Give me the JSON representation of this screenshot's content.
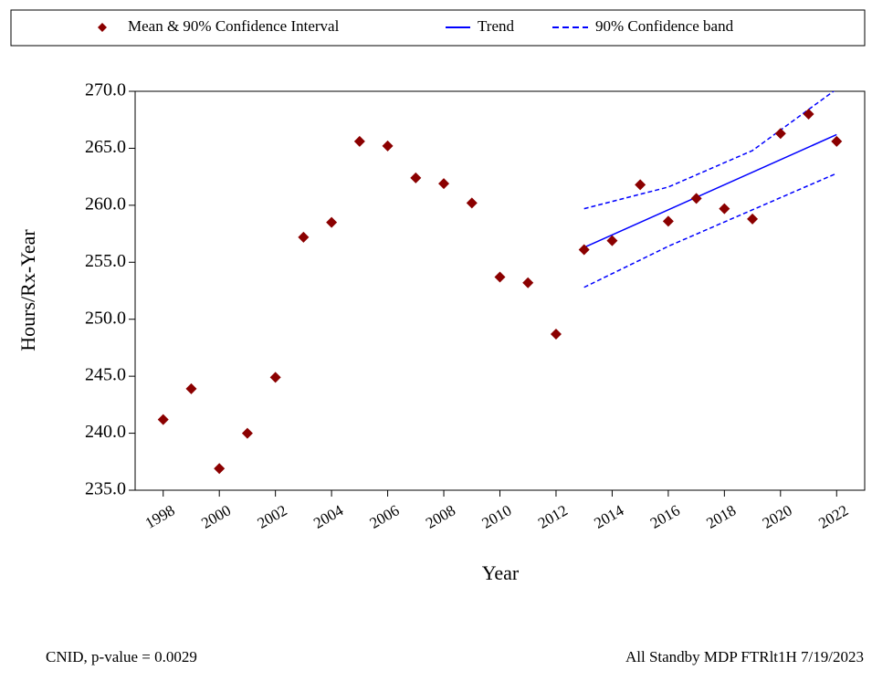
{
  "chart_data": {
    "type": "scatter",
    "x_label": "Year",
    "y_label": "Hours/Rx-Year",
    "xlim": [
      1997,
      2023
    ],
    "ylim": [
      235,
      270
    ],
    "xticks": [
      1998,
      2000,
      2002,
      2004,
      2006,
      2008,
      2010,
      2012,
      2014,
      2016,
      2018,
      2020,
      2022
    ],
    "yticks": [
      {
        "value": 235,
        "label": "235.0"
      },
      {
        "value": 240,
        "label": "240.0"
      },
      {
        "value": 245,
        "label": "245.0"
      },
      {
        "value": 250,
        "label": "250.0"
      },
      {
        "value": 255,
        "label": "255.0"
      },
      {
        "value": 260,
        "label": "260.0"
      },
      {
        "value": 265,
        "label": "265.0"
      },
      {
        "value": 270,
        "label": "270.0"
      }
    ],
    "series": [
      {
        "name": "Mean & 90% Confidence Interval",
        "color": "#8b0000",
        "x": [
          1998,
          1999,
          2000,
          2001,
          2002,
          2003,
          2004,
          2005,
          2006,
          2007,
          2008,
          2009,
          2010,
          2011,
          2012,
          2013,
          2014,
          2015,
          2016,
          2017,
          2018,
          2019,
          2020,
          2021,
          2022
        ],
        "values": [
          241.2,
          243.9,
          236.9,
          240.0,
          244.9,
          257.2,
          258.5,
          265.6,
          265.2,
          262.4,
          261.9,
          260.2,
          253.7,
          253.2,
          248.7,
          256.1,
          256.9,
          261.8,
          258.6,
          260.6,
          259.7,
          258.8,
          266.3,
          268.0,
          265.6
        ]
      },
      {
        "name": "Trend",
        "color": "#0000ff",
        "x": [
          2013,
          2022
        ],
        "values": [
          256.3,
          266.2
        ]
      },
      {
        "name": "90% Confidence band",
        "color": "#0000ff",
        "x": [
          2013,
          2016,
          2019,
          2022
        ],
        "upper": [
          259.7,
          261.6,
          264.8,
          270.2
        ],
        "lower": [
          252.8,
          256.4,
          259.6,
          262.8
        ]
      }
    ],
    "footnote_left": "CNID, p-value = 0.0029",
    "footnote_right": "All Standby MDP FTRlt1H 7/19/2023"
  }
}
